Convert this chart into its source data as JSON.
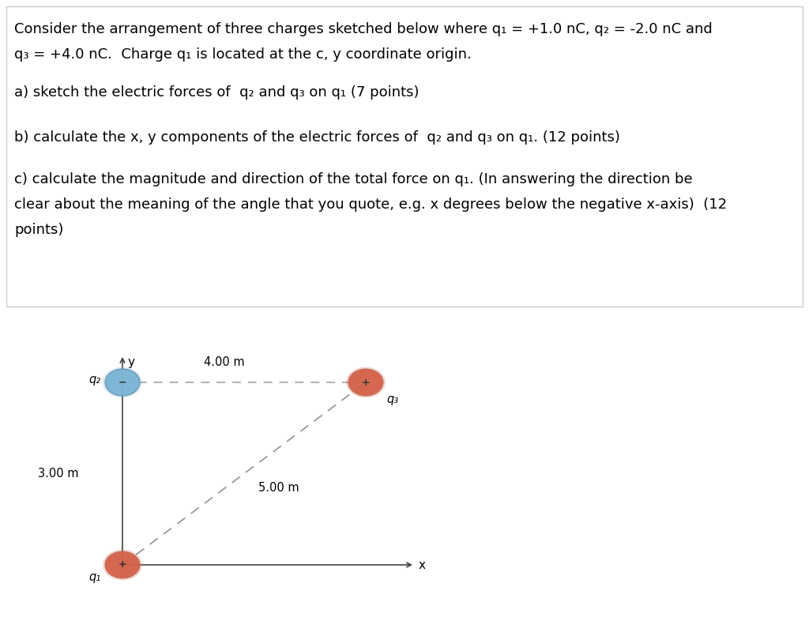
{
  "background_color": "#ffffff",
  "text_color": "#000000",
  "line1": "Consider the arrangement of three charges sketched below where q₁ = +1.0 nC, q₂ = -2.0 nC and",
  "line2": "q₃ = +4.0 nC.  Charge q₁ is located at the c, y coordinate origin.",
  "part_a": "a) sketch the electric forces of  q₂ and q₃ on q₁ (7 points)",
  "part_b": "b) calculate the x, y components of the electric forces of  q₂ and q₃ on q₁. (12 points)",
  "part_c1": "c) calculate the magnitude and direction of the total force on q₁. (In answering the direction be",
  "part_c2": "clear about the meaning of the angle that you quote, e.g. x degrees below the negative x-axis)  (12",
  "part_c3": "points)",
  "label_300m": "3.00 m",
  "label_400m": "4.00 m",
  "label_500m": "5.00 m",
  "axis_color": "#444444",
  "dashed_horiz_color": "#aaaaaa",
  "dashed_diag_color": "#999999",
  "q1_color": "#d4614a",
  "q2_color": "#7ab3d4",
  "q3_color": "#d4614a",
  "border_color": "#cccccc",
  "fontsize_text": 13.0,
  "fontsize_diagram": 10.5,
  "fontsize_axis_label": 11
}
